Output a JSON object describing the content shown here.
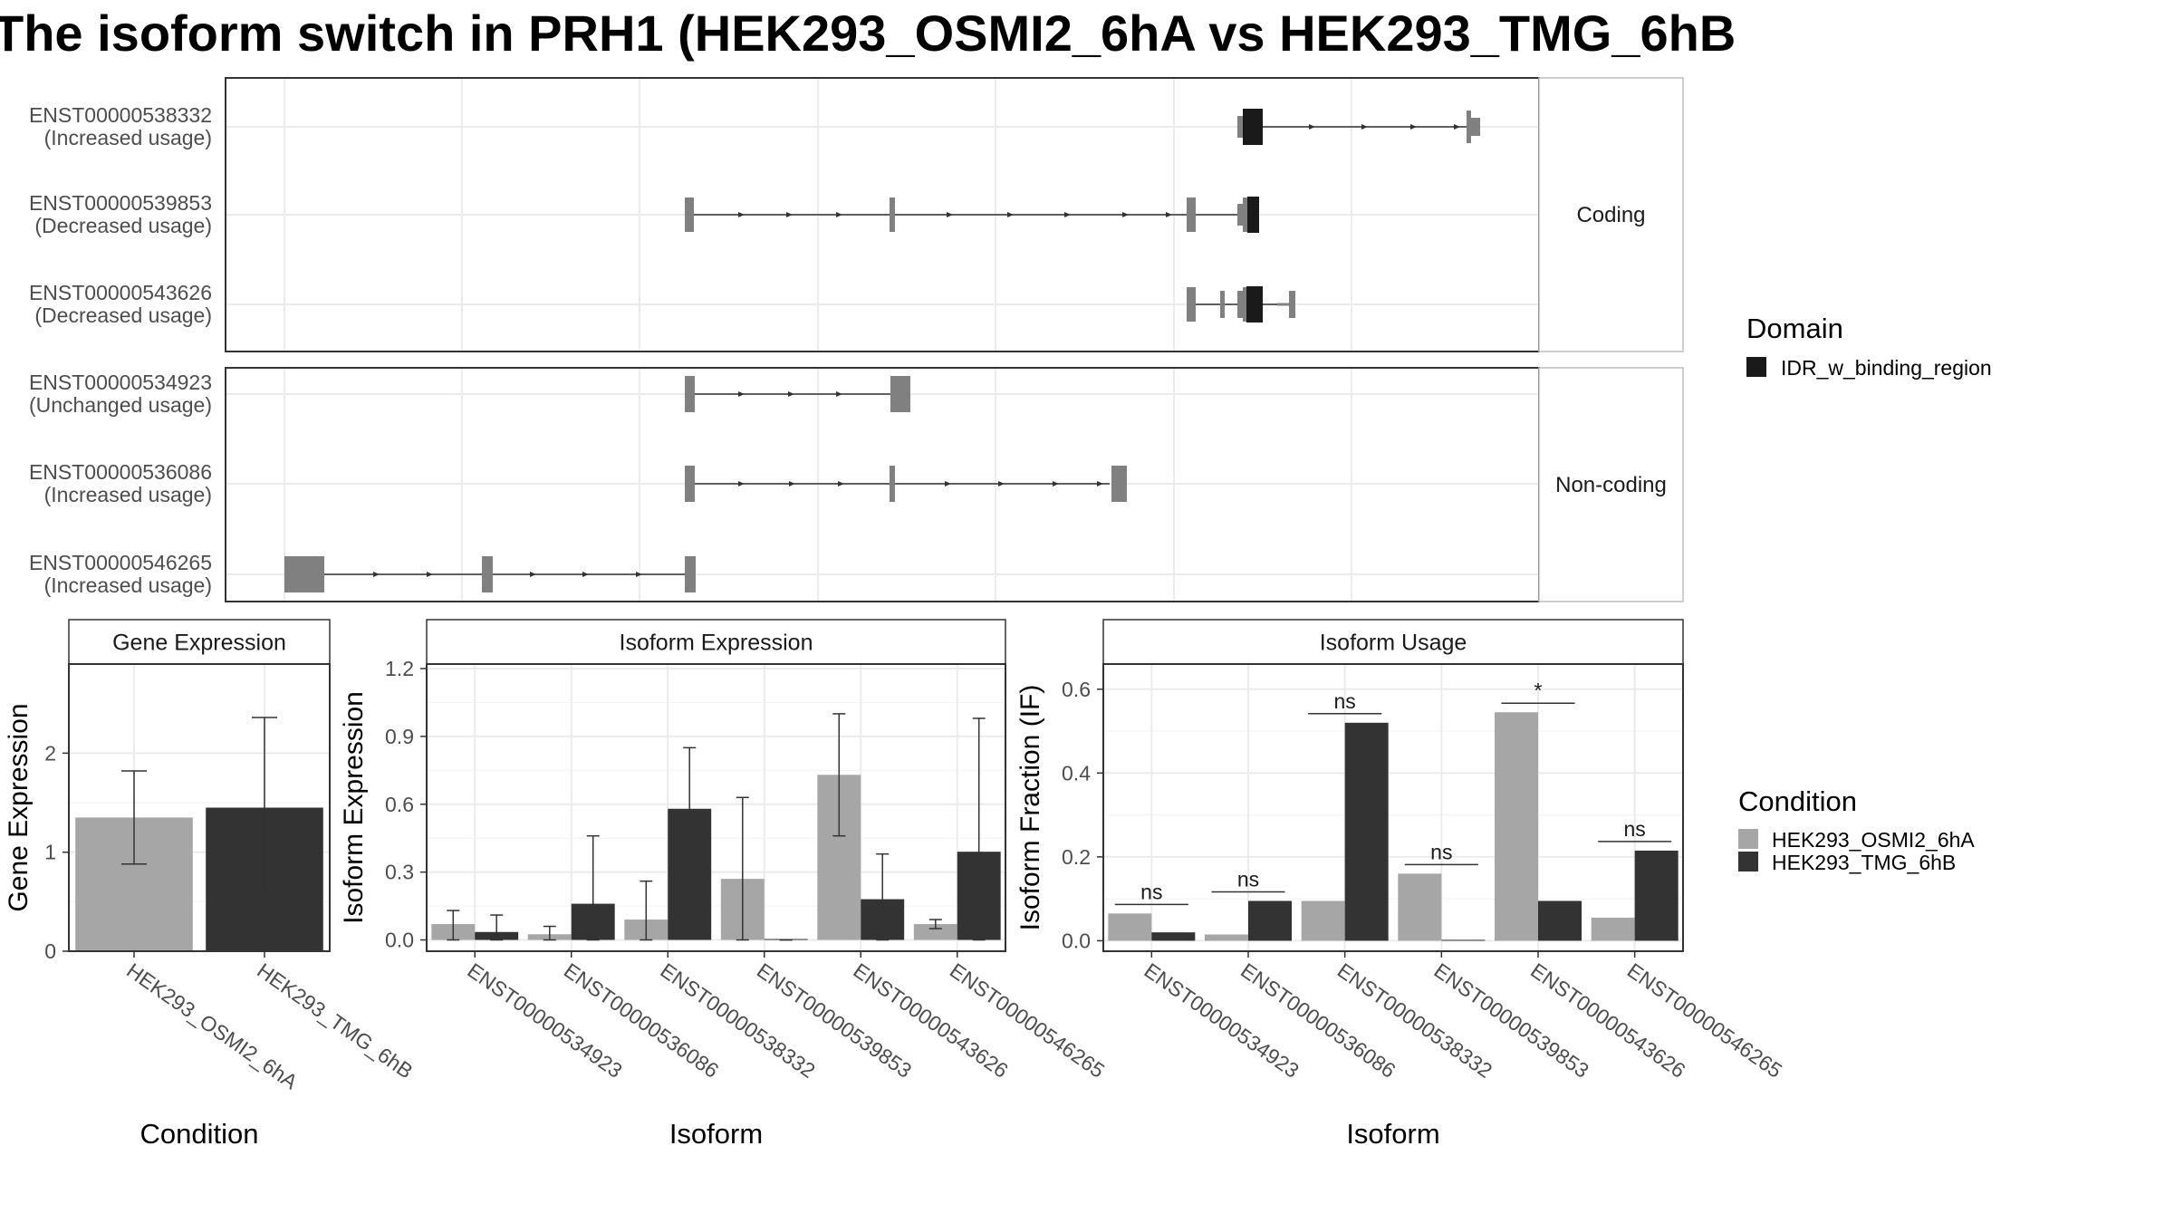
{
  "title": "The isoform switch in PRH1 (HEK293_OSMI2_6hA vs HEK293_TMG_6hB",
  "colors": {
    "osmi": "#a6a6a6",
    "tmg": "#333333",
    "domain": "#1a1a1a",
    "exon": "#808080",
    "panel_border": "#333333",
    "grid": "#ebebeb",
    "strip_bg": "#ffffff"
  },
  "transcript_plot": {
    "facets": [
      {
        "label": "Coding",
        "transcripts": [
          {
            "id": "ENST00000538332",
            "usage": "(Increased usage)"
          },
          {
            "id": "ENST00000539853",
            "usage": "(Decreased usage)"
          },
          {
            "id": "ENST00000543626",
            "usage": "(Decreased usage)"
          }
        ]
      },
      {
        "label": "Non-coding",
        "transcripts": [
          {
            "id": "ENST00000534923",
            "usage": "(Unchanged usage)"
          },
          {
            "id": "ENST00000536086",
            "usage": "(Increased usage)"
          },
          {
            "id": "ENST00000546265",
            "usage": "(Increased usage)"
          }
        ]
      }
    ],
    "legend": {
      "title": "Domain",
      "items": [
        "IDR_w_binding_region"
      ]
    }
  },
  "chart_data": [
    {
      "type": "bar",
      "title": "Gene Expression",
      "xlabel": "Condition",
      "ylabel": "Gene Expression",
      "categories": [
        "HEK293_OSMI2_6hA",
        "HEK293_TMG_6hB"
      ],
      "values": [
        1.35,
        1.45
      ],
      "error_low": [
        0.88,
        0.55
      ],
      "error_high": [
        1.82,
        2.36
      ],
      "ylim": [
        0,
        2.9
      ],
      "yticks": [
        "0",
        "1",
        "2"
      ],
      "ytick_values": [
        0,
        1,
        2
      ]
    },
    {
      "type": "bar",
      "title": "Isoform Expression",
      "xlabel": "Isoform",
      "ylabel": "Isoform Expression",
      "categories": [
        "ENST00000534923",
        "ENST00000536086",
        "ENST00000538332",
        "ENST00000539853",
        "ENST00000543626",
        "ENST00000546265"
      ],
      "series": [
        {
          "name": "HEK293_OSMI2_6hA",
          "values": [
            0.07,
            0.025,
            0.09,
            0.27,
            0.73,
            0.07
          ],
          "error_low": [
            0.0,
            0.0,
            0.0,
            0.0,
            0.46,
            0.05
          ],
          "error_high": [
            0.13,
            0.06,
            0.26,
            0.63,
            1.0,
            0.09
          ]
        },
        {
          "name": "HEK293_TMG_6hB",
          "values": [
            0.035,
            0.16,
            0.58,
            0.0,
            0.18,
            0.39
          ],
          "error_low": [
            0.0,
            0.0,
            0.3,
            0.0,
            0.0,
            0.0
          ],
          "error_high": [
            0.11,
            0.46,
            0.85,
            0.0,
            0.38,
            0.98
          ]
        }
      ],
      "ylim": [
        -0.05,
        1.22
      ],
      "yticks": [
        "0.0",
        "0.3",
        "0.6",
        "0.9",
        "1.2"
      ],
      "ytick_values": [
        0.0,
        0.3,
        0.6,
        0.9,
        1.2
      ]
    },
    {
      "type": "bar",
      "title": "Isoform Usage",
      "xlabel": "Isoform",
      "ylabel": "Isoform Fraction (IF)",
      "categories": [
        "ENST00000534923",
        "ENST00000536086",
        "ENST00000538332",
        "ENST00000539853",
        "ENST00000543626",
        "ENST00000546265"
      ],
      "series": [
        {
          "name": "HEK293_OSMI2_6hA",
          "values": [
            0.065,
            0.015,
            0.095,
            0.16,
            0.545,
            0.055
          ]
        },
        {
          "name": "HEK293_TMG_6hB",
          "values": [
            0.02,
            0.095,
            0.52,
            0.0,
            0.095,
            0.215
          ]
        }
      ],
      "significance": [
        "ns",
        "ns",
        "ns",
        "ns",
        "*",
        "ns"
      ],
      "ylim": [
        -0.025,
        0.66
      ],
      "yticks": [
        "0.0",
        "0.2",
        "0.4",
        "0.6"
      ],
      "ytick_values": [
        0.0,
        0.2,
        0.4,
        0.6
      ]
    }
  ],
  "condition_legend": {
    "title": "Condition",
    "items": [
      "HEK293_OSMI2_6hA",
      "HEK293_TMG_6hB"
    ]
  }
}
